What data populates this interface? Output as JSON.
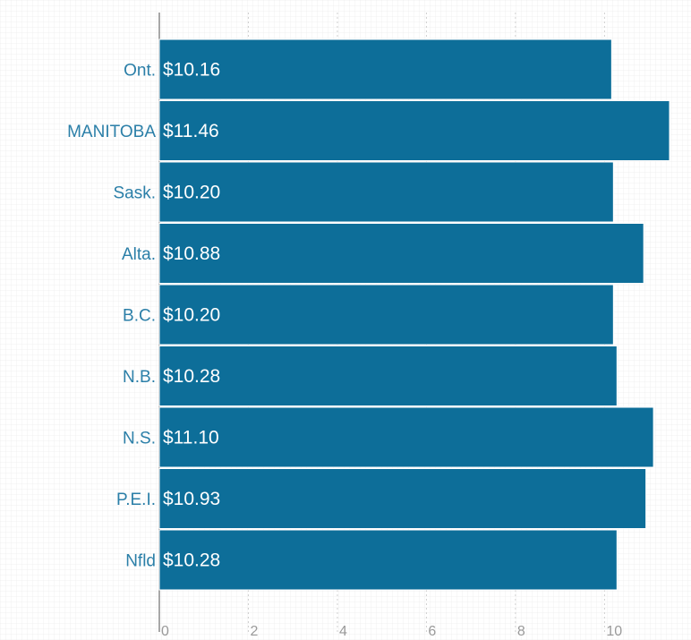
{
  "colors": {
    "bar": "#0d6e99",
    "bar_stroke": "#ffffff",
    "category_text": "#2b7fa8",
    "value_text": "#ffffff",
    "grid": "#d6d6d6",
    "gridlines_dotted": "#cfcfcf",
    "axis": "#8a8a8a",
    "tick_text": "#9a9a9a"
  },
  "chart_data": {
    "type": "bar",
    "orientation": "horizontal",
    "title": "",
    "xlabel": "",
    "ylabel": "",
    "categories": [
      "Ont.",
      "MANITOBA",
      "Sask.",
      "Alta.",
      "B.C.",
      "N.B.",
      "N.S.",
      "P.E.I.",
      "Nfld"
    ],
    "values": [
      10.16,
      11.46,
      10.2,
      10.88,
      10.2,
      10.28,
      11.1,
      10.93,
      10.28
    ],
    "value_labels": [
      "$10.16",
      "$11.46",
      "$10.20",
      "$10.88",
      "$10.20",
      "$10.28",
      "$11.10",
      "$10.93",
      "$10.28"
    ],
    "xlim": [
      0,
      11.46
    ],
    "x_ticks": [
      "0",
      "2",
      "4",
      "6",
      "8",
      "10"
    ],
    "grid": true,
    "legend": "none"
  }
}
